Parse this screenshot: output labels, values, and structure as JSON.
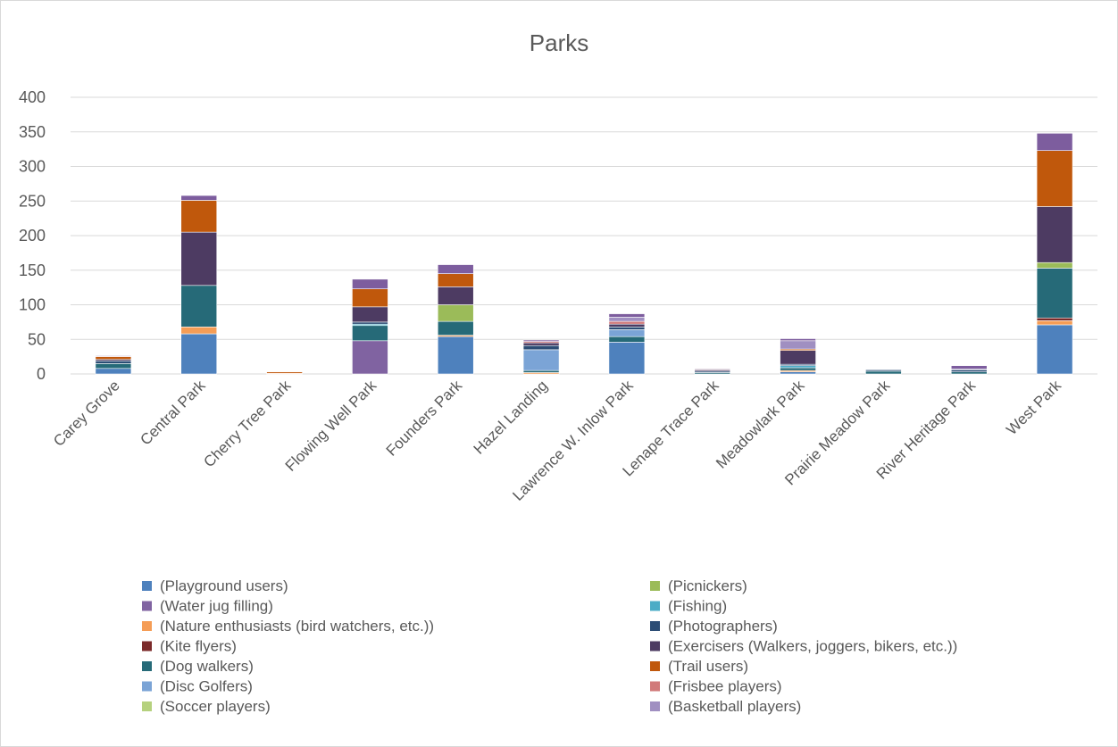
{
  "chart_data": {
    "type": "bar",
    "stacked": true,
    "title": "Parks",
    "xlabel": "",
    "ylabel": "",
    "ylim": [
      0,
      400
    ],
    "yticks": [
      0,
      50,
      100,
      150,
      200,
      250,
      300,
      350,
      400
    ],
    "grid": true,
    "legend_position": "bottom",
    "categories": [
      "Carey Grove",
      "Central Park",
      "Cherry Tree Park",
      "Flowing Well Park",
      "Founders Park",
      "Hazel Landing",
      "Lawrence W. Inlow Park",
      "Lenape Trace Park",
      "Meadowlark Park",
      "Prairie Meadow Park",
      "River Heritage Park",
      "West Park"
    ],
    "series": [
      {
        "name": "(Playground users)",
        "color": "#4e81bd",
        "values": [
          8,
          58,
          0,
          0,
          54,
          0,
          46,
          0,
          3,
          0,
          0,
          71
        ]
      },
      {
        "name": "(Water jug filling)",
        "color": "#8063a1",
        "values": [
          0,
          0,
          0,
          48,
          0,
          0,
          0,
          0,
          0,
          0,
          0,
          0
        ]
      },
      {
        "name": "(Nature enthusiasts (bird watchers, etc.))",
        "color": "#f59d56",
        "values": [
          0,
          10,
          1,
          0,
          2,
          2,
          0,
          0,
          2,
          0,
          0,
          6
        ]
      },
      {
        "name": "(Kite flyers)",
        "color": "#7b2a2a",
        "values": [
          0,
          0,
          0,
          0,
          0,
          0,
          0,
          0,
          0,
          0,
          0,
          4
        ]
      },
      {
        "name": "(Dog walkers)",
        "color": "#266a78",
        "values": [
          7,
          60,
          0,
          22,
          20,
          3,
          8,
          2,
          4,
          4,
          3,
          72
        ]
      },
      {
        "name": "(Disc Golfers)",
        "color": "#7ba4d6",
        "values": [
          0,
          0,
          0,
          0,
          0,
          30,
          10,
          0,
          0,
          0,
          0,
          0
        ]
      },
      {
        "name": "(Soccer players)",
        "color": "#b5d17e",
        "values": [
          0,
          0,
          0,
          0,
          0,
          0,
          0,
          0,
          0,
          0,
          0,
          0
        ]
      },
      {
        "name": "(Picnickers)",
        "color": "#9bbb59",
        "values": [
          0,
          0,
          0,
          0,
          24,
          0,
          0,
          0,
          0,
          0,
          0,
          8
        ]
      },
      {
        "name": "(Fishing)",
        "color": "#4bacc6",
        "values": [
          0,
          0,
          0,
          2,
          0,
          0,
          0,
          0,
          3,
          0,
          0,
          0
        ]
      },
      {
        "name": "(Photographers)",
        "color": "#2c4d75",
        "values": [
          4,
          0,
          0,
          3,
          0,
          6,
          4,
          2,
          2,
          2,
          3,
          0
        ]
      },
      {
        "name": "(Exercisers (Walkers, joggers, bikers, etc.))",
        "color": "#4d3b62",
        "values": [
          2,
          77,
          0,
          22,
          26,
          4,
          4,
          2,
          20,
          0,
          1,
          81
        ]
      },
      {
        "name": "(Trail users)",
        "color": "#c0580c",
        "values": [
          4,
          46,
          2,
          26,
          19,
          0,
          0,
          1,
          2,
          0,
          0,
          81
        ]
      },
      {
        "name": "(Frisbee players)",
        "color": "#d17a7a",
        "values": [
          1,
          0,
          0,
          0,
          0,
          2,
          4,
          0,
          0,
          0,
          0,
          0
        ]
      },
      {
        "name": "(Basketball players)",
        "color": "#a08fc1",
        "values": [
          0,
          0,
          0,
          0,
          0,
          0,
          6,
          0,
          12,
          0,
          0,
          0
        ]
      },
      {
        "name": "(Water jug filling, top)",
        "color": "#7d5d9e",
        "values": [
          1,
          7,
          0,
          14,
          13,
          2,
          5,
          1,
          3,
          0,
          5,
          25
        ]
      }
    ],
    "legend_left": [
      "(Playground users)",
      "(Water jug filling)",
      "(Nature enthusiasts (bird watchers, etc.))",
      "(Kite flyers)",
      "(Dog walkers)",
      "(Disc Golfers)",
      "(Soccer players)"
    ],
    "legend_right": [
      "(Picnickers)",
      "(Fishing)",
      "(Photographers)",
      "(Exercisers (Walkers, joggers, bikers, etc.))",
      "(Trail users)",
      "(Frisbee players)",
      "(Basketball players)"
    ],
    "legend_colors": {
      "(Playground users)": "#4e81bd",
      "(Water jug filling)": "#8063a1",
      "(Nature enthusiasts (bird watchers, etc.))": "#f59d56",
      "(Kite flyers)": "#7b2a2a",
      "(Dog walkers)": "#266a78",
      "(Disc Golfers)": "#7ba4d6",
      "(Soccer players)": "#b5d17e",
      "(Picnickers)": "#9bbb59",
      "(Fishing)": "#4bacc6",
      "(Photographers)": "#2c4d75",
      "(Exercisers (Walkers, joggers, bikers, etc.))": "#4d3b62",
      "(Trail users)": "#c0580c",
      "(Frisbee players)": "#d17a7a",
      "(Basketball players)": "#a08fc1"
    }
  }
}
